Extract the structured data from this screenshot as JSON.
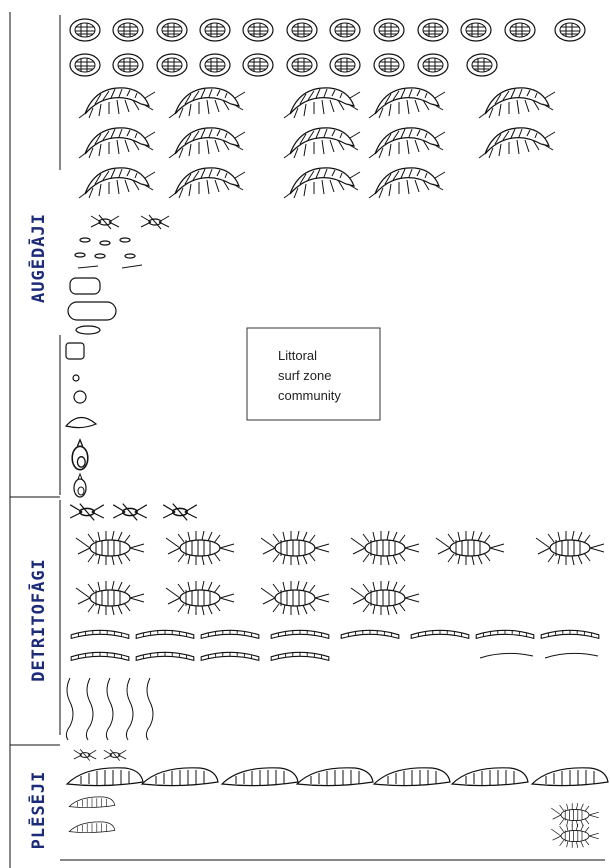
{
  "groups": {
    "herbivores": "AUGĒDĀJI",
    "detritivores": "DETRITOFĀGI",
    "predators": "PLĒSĒJI"
  },
  "box": {
    "lines": [
      "Littoral",
      "surf zone",
      "community"
    ]
  }
}
